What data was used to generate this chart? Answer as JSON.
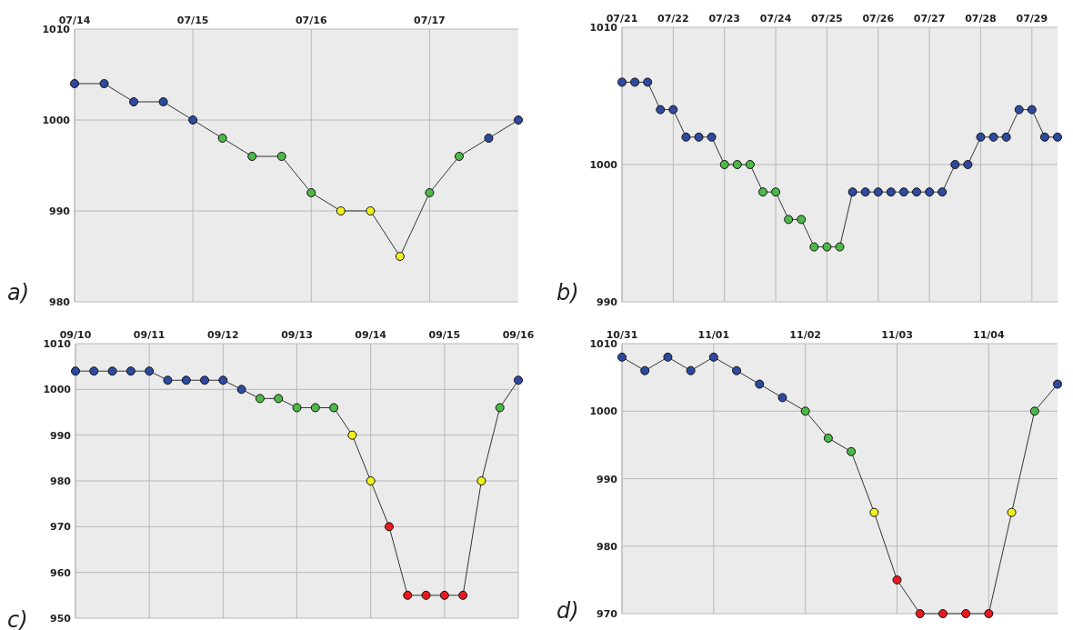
{
  "chart_data": [
    {
      "type": "line",
      "annotations": [
        "a)"
      ],
      "grid": true,
      "marker": "circle",
      "line_style": "solid",
      "categories": [
        "07/14",
        null,
        null,
        null,
        "07/15",
        null,
        null,
        null,
        "07/16",
        null,
        null,
        null,
        "07/17",
        null,
        null,
        null
      ],
      "ylim": [
        980,
        1010
      ],
      "yticks": [
        980,
        990,
        1000,
        1010
      ],
      "series": [
        {
          "color": "#333333",
          "values": [
            1004,
            1004,
            1002,
            1002,
            1000,
            998,
            996,
            996,
            992,
            990,
            990,
            985,
            992,
            996,
            998,
            1000
          ],
          "colors": [
            "#2e4a9e",
            "#2e4a9e",
            "#2e4a9e",
            "#2e4a9e",
            "#2e4a9e",
            "#4cb848",
            "#4cb848",
            "#4cb848",
            "#4cb848",
            "#f2f01e",
            "#f2f01e",
            "#f2f01e",
            "#4cb848",
            "#4cb848",
            "#2e4a9e",
            "#2e4a9e"
          ]
        }
      ]
    },
    {
      "type": "line",
      "annotations": [
        "b)"
      ],
      "grid": true,
      "marker": "circle",
      "line_style": "solid",
      "categories": [
        "07/21",
        null,
        null,
        null,
        "07/22",
        null,
        null,
        null,
        "07/23",
        null,
        null,
        null,
        "07/24",
        null,
        null,
        null,
        "07/25",
        null,
        null,
        null,
        "07/26",
        null,
        null,
        null,
        "07/27",
        null,
        null,
        null,
        "07/28",
        null,
        null,
        null,
        "07/29",
        null,
        null
      ],
      "ylim": [
        990,
        1010
      ],
      "yticks": [
        990,
        1000,
        1010
      ],
      "series": [
        {
          "color": "#333333",
          "values": [
            1006,
            1006,
            1006,
            1004,
            1004,
            1002,
            1002,
            1002,
            1000,
            1000,
            1000,
            998,
            998,
            996,
            996,
            994,
            994,
            994,
            998,
            998,
            998,
            998,
            998,
            998,
            998,
            998,
            1000,
            1000,
            1002,
            1002,
            1002,
            1004,
            1004,
            1002,
            1002
          ],
          "colors": [
            "#2e4a9e",
            "#2e4a9e",
            "#2e4a9e",
            "#2e4a9e",
            "#2e4a9e",
            "#2e4a9e",
            "#2e4a9e",
            "#2e4a9e",
            "#4cb848",
            "#4cb848",
            "#4cb848",
            "#4cb848",
            "#4cb848",
            "#4cb848",
            "#4cb848",
            "#4cb848",
            "#4cb848",
            "#4cb848",
            "#2e4a9e",
            "#2e4a9e",
            "#2e4a9e",
            "#2e4a9e",
            "#2e4a9e",
            "#2e4a9e",
            "#2e4a9e",
            "#2e4a9e",
            "#2e4a9e",
            "#2e4a9e",
            "#2e4a9e",
            "#2e4a9e",
            "#2e4a9e",
            "#2e4a9e",
            "#2e4a9e",
            "#2e4a9e",
            "#2e4a9e"
          ]
        }
      ]
    },
    {
      "type": "line",
      "annotations": [
        "c)"
      ],
      "grid": true,
      "marker": "circle",
      "line_style": "solid",
      "categories": [
        "09/10",
        null,
        null,
        null,
        "09/11",
        null,
        null,
        null,
        "09/12",
        null,
        null,
        null,
        "09/13",
        null,
        null,
        null,
        "09/14",
        null,
        null,
        null,
        "09/15",
        null,
        null,
        null,
        "09/16"
      ],
      "ylim": [
        950,
        1010
      ],
      "yticks": [
        950,
        960,
        970,
        980,
        990,
        1000,
        1010
      ],
      "series": [
        {
          "color": "#333333",
          "values": [
            1004,
            1004,
            1004,
            1004,
            1004,
            1002,
            1002,
            1002,
            1002,
            1000,
            998,
            998,
            996,
            996,
            996,
            990,
            980,
            970,
            955,
            955,
            955,
            955,
            980,
            996,
            1002
          ],
          "colors": [
            "#2e4a9e",
            "#2e4a9e",
            "#2e4a9e",
            "#2e4a9e",
            "#2e4a9e",
            "#2e4a9e",
            "#2e4a9e",
            "#2e4a9e",
            "#2e4a9e",
            "#2e4a9e",
            "#4cb848",
            "#4cb848",
            "#4cb848",
            "#4cb848",
            "#4cb848",
            "#f2f01e",
            "#f2f01e",
            "#e8191e",
            "#e8191e",
            "#e8191e",
            "#e8191e",
            "#e8191e",
            "#f2f01e",
            "#4cb848",
            "#2e4a9e"
          ]
        }
      ]
    },
    {
      "type": "line",
      "annotations": [
        "d)"
      ],
      "grid": true,
      "marker": "circle",
      "line_style": "solid",
      "categories": [
        "10/31",
        null,
        null,
        null,
        "11/01",
        null,
        null,
        null,
        "11/02",
        null,
        null,
        null,
        "11/03",
        null,
        null,
        null,
        "11/04",
        null,
        null,
        null
      ],
      "ylim": [
        970,
        1010
      ],
      "yticks": [
        970,
        980,
        990,
        1000,
        1010
      ],
      "series": [
        {
          "color": "#333333",
          "values": [
            1008,
            1006,
            1008,
            1006,
            1008,
            1006,
            1004,
            1002,
            1000,
            996,
            994,
            985,
            975,
            970,
            970,
            970,
            970,
            985,
            1000,
            1004
          ],
          "colors": [
            "#2e4a9e",
            "#2e4a9e",
            "#2e4a9e",
            "#2e4a9e",
            "#2e4a9e",
            "#2e4a9e",
            "#2e4a9e",
            "#2e4a9e",
            "#4cb848",
            "#4cb848",
            "#4cb848",
            "#f2f01e",
            "#e8191e",
            "#e8191e",
            "#e8191e",
            "#e8191e",
            "#e8191e",
            "#f2f01e",
            "#4cb848",
            "#2e4a9e"
          ]
        }
      ]
    }
  ]
}
